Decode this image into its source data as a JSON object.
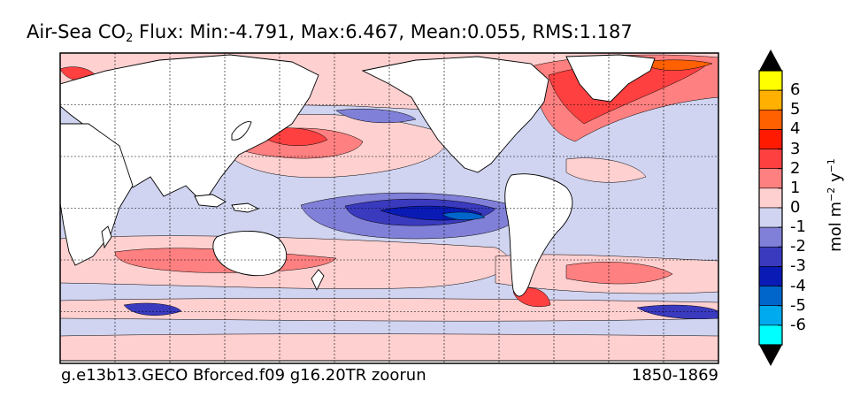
{
  "title": {
    "prefix": "Air-Sea CO",
    "subscript": "2",
    "suffix": "  Flux: Min:-4.791, Max:6.467, Mean:0.055, RMS:1.187"
  },
  "footer": {
    "run_name": "g.e13b13.GECO Bforced.f09 g16.20TR zoorun",
    "period": "1850-1869"
  },
  "colorbar": {
    "unit_base": "mol m",
    "unit_exp1": "−2",
    "unit_mid": " y",
    "unit_exp2": "−1",
    "tick_labels": [
      "6",
      "5",
      "4",
      "3",
      "2",
      "1",
      "0",
      "-1",
      "-2",
      "-3",
      "-4",
      "-5",
      "-6"
    ],
    "colors_top_to_bottom": [
      "#ffff00",
      "#ffb000",
      "#ff6000",
      "#ff1a00",
      "#ff4040",
      "#ff8080",
      "#ffd0d0",
      "#d0d4f0",
      "#8080d8",
      "#3a3abf",
      "#0a1ab5",
      "#0066cc",
      "#00aaee",
      "#00ffff"
    ],
    "under_color": "#000000",
    "over_color": "#000000"
  },
  "map_colors": {
    "ocean_base": "#d0d4f0",
    "land": "#ffffff",
    "coastline": "#000000",
    "grid": "#000000"
  }
}
